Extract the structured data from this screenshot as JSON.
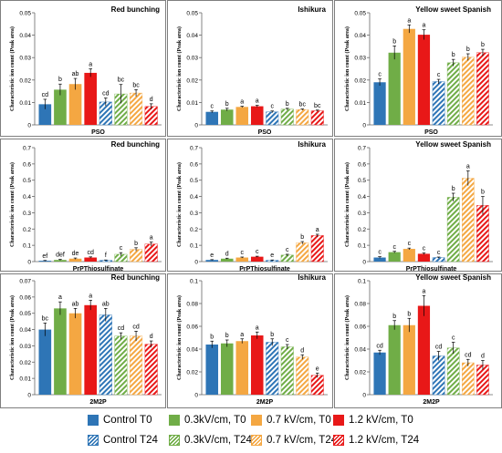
{
  "colors": {
    "control": "#2e75b6",
    "low": "#70ad47",
    "mid": "#f4a742",
    "high": "#e81818"
  },
  "legend": {
    "items": [
      {
        "label": "Control T0",
        "color": "#2e75b6",
        "pattern": "solid"
      },
      {
        "label": "0.3kV/cm, T0",
        "color": "#70ad47",
        "pattern": "solid"
      },
      {
        "label": "0.7 kV/cm, T0",
        "color": "#f4a742",
        "pattern": "solid"
      },
      {
        "label": "1.2 kV/cm, T0",
        "color": "#e81818",
        "pattern": "solid"
      },
      {
        "label": "Control T24",
        "color": "#2e75b6",
        "pattern": "hatch"
      },
      {
        "label": "0.3kV/cm, T24",
        "color": "#70ad47",
        "pattern": "hatch"
      },
      {
        "label": "0.7 kV/cm, T24",
        "color": "#f4a742",
        "pattern": "hatch"
      },
      {
        "label": "1.2 kV/cm, T24",
        "color": "#e81818",
        "pattern": "hatch"
      }
    ]
  },
  "chart_data": [
    {
      "type": "bar",
      "title": "Red bunching",
      "xlabel": "PSO",
      "ylabel": "Characteristic ion count (Peak area)",
      "ylim": [
        0,
        0.05
      ],
      "yticks": [
        "0",
        "0.01",
        "0.02",
        "0.03",
        "0.04",
        "0.05"
      ],
      "grid": false,
      "categories": [
        "Control T0",
        "0.3kV/cm, T0",
        "0.7 kV/cm, T0",
        "1.2 kV/cm, T0",
        "Control T24",
        "0.3kV/cm, T24",
        "0.7 kV/cm, T24",
        "1.2 kV/cm, T24"
      ],
      "values": [
        0.0092,
        0.0157,
        0.0182,
        0.0232,
        0.0102,
        0.0138,
        0.0142,
        0.0082
      ],
      "errors": [
        0.0022,
        0.0025,
        0.0025,
        0.0018,
        0.0018,
        0.0042,
        0.0015,
        0.0012
      ],
      "labels": [
        "cd",
        "b",
        "ab",
        "a",
        "cd",
        "bc",
        "bc",
        "d"
      ]
    },
    {
      "type": "bar",
      "title": "Ishikura",
      "xlabel": "PSO",
      "ylabel": "Characteristic ion count (Peak area)",
      "ylim": [
        0,
        0.05
      ],
      "yticks": [
        "0",
        "0.01",
        "0.02",
        "0.03",
        "0.04",
        "0.05"
      ],
      "grid": false,
      "categories": [
        "Control T0",
        "0.3kV/cm, T0",
        "0.7 kV/cm, T0",
        "1.2 kV/cm, T0",
        "Control T24",
        "0.3kV/cm, T24",
        "0.7 kV/cm, T24",
        "1.2 kV/cm, T24"
      ],
      "values": [
        0.0058,
        0.0068,
        0.008,
        0.0083,
        0.0058,
        0.007,
        0.0068,
        0.0063
      ],
      "errors": [
        0.0004,
        0.0006,
        0.0003,
        0.0004,
        0.0004,
        0.0004,
        0.0003,
        0.0003
      ],
      "labels": [
        "c",
        "b",
        "a",
        "a",
        "c",
        "b",
        "bc",
        "bc"
      ]
    },
    {
      "type": "bar",
      "title": "Yellow sweet Spanish",
      "xlabel": "PSO",
      "ylabel": "Characteristic ion count (Peak area)",
      "ylim": [
        0,
        0.05
      ],
      "yticks": [
        "0",
        "0.01",
        "0.02",
        "0.03",
        "0.04",
        "0.05"
      ],
      "grid": false,
      "categories": [
        "Control T0",
        "0.3kV/cm, T0",
        "0.7 kV/cm, T0",
        "1.2 kV/cm, T0",
        "Control T24",
        "0.3kV/cm, T24",
        "0.7 kV/cm, T24",
        "1.2 kV/cm, T24"
      ],
      "values": [
        0.019,
        0.0322,
        0.0428,
        0.0402,
        0.0193,
        0.0277,
        0.0302,
        0.0322
      ],
      "errors": [
        0.0015,
        0.003,
        0.0018,
        0.0022,
        0.001,
        0.0015,
        0.0015,
        0.0015
      ],
      "labels": [
        "c",
        "b",
        "a",
        "a",
        "c",
        "b",
        "b",
        "b"
      ]
    },
    {
      "type": "bar",
      "title": "Red bunching",
      "xlabel": "PrPThiosulfinate",
      "ylabel": "Characteristic ion count (Peak area)",
      "ylim": [
        0,
        0.7
      ],
      "yticks": [
        "0",
        "0.1",
        "0.2",
        "0.3",
        "0.4",
        "0.5",
        "0.6",
        "0.7"
      ],
      "grid": false,
      "categories": [
        "Control T0",
        "0.3kV/cm, T0",
        "0.7 kV/cm, T0",
        "1.2 kV/cm, T0",
        "Control T24",
        "0.3kV/cm, T24",
        "0.7 kV/cm, T24",
        "1.2 kV/cm, T24"
      ],
      "values": [
        0.005,
        0.01,
        0.018,
        0.025,
        0.008,
        0.045,
        0.075,
        0.108
      ],
      "errors": [
        0.002,
        0.004,
        0.004,
        0.004,
        0.002,
        0.01,
        0.01,
        0.012
      ],
      "labels": [
        "ef",
        "def",
        "de",
        "cd",
        "f",
        "c",
        "b",
        "a"
      ]
    },
    {
      "type": "bar",
      "title": "Ishikura",
      "xlabel": "PrPThiosulfinate",
      "ylabel": "Characteristic ion count (Peak area)",
      "ylim": [
        0,
        0.7
      ],
      "yticks": [
        "0",
        "0.1",
        "0.2",
        "0.3",
        "0.4",
        "0.5",
        "0.6",
        "0.7"
      ],
      "grid": false,
      "categories": [
        "Control T0",
        "0.3kV/cm, T0",
        "0.7 kV/cm, T0",
        "1.2 kV/cm, T0",
        "Control T24",
        "0.3kV/cm, T24",
        "0.7 kV/cm, T24",
        "1.2 kV/cm, T24"
      ],
      "values": [
        0.01,
        0.018,
        0.025,
        0.03,
        0.008,
        0.04,
        0.115,
        0.16
      ],
      "errors": [
        0.002,
        0.003,
        0.003,
        0.003,
        0.002,
        0.005,
        0.008,
        0.008
      ],
      "labels": [
        "e",
        "d",
        "c",
        "c",
        "e",
        "c",
        "b",
        "a"
      ]
    },
    {
      "type": "bar",
      "title": "Yellow sweet Spanish",
      "xlabel": "PrPThiosulfinate",
      "ylabel": "Characteristic ion count (Peak area)",
      "ylim": [
        0,
        0.7
      ],
      "yticks": [
        "0",
        "0.1",
        "0.2",
        "0.3",
        "0.4",
        "0.5",
        "0.6",
        "0.7"
      ],
      "grid": false,
      "categories": [
        "Control T0",
        "0.3kV/cm, T0",
        "0.7 kV/cm, T0",
        "1.2 kV/cm, T0",
        "Control T24",
        "0.3kV/cm, T24",
        "0.7 kV/cm, T24",
        "1.2 kV/cm, T24"
      ],
      "values": [
        0.025,
        0.058,
        0.078,
        0.048,
        0.025,
        0.395,
        0.512,
        0.345
      ],
      "errors": [
        0.005,
        0.005,
        0.005,
        0.005,
        0.003,
        0.025,
        0.045,
        0.055
      ],
      "labels": [
        "c",
        "c",
        "c",
        "c",
        "c",
        "b",
        "a",
        "b"
      ]
    },
    {
      "type": "bar",
      "title": "Red bunching",
      "xlabel": "2M2P",
      "ylabel": "Characteristic ion count (Peak area)",
      "ylim": [
        0,
        0.07
      ],
      "yticks": [
        "0",
        "0.01",
        "0.02",
        "0.03",
        "0.04",
        "0.05",
        "0.06",
        "0.07"
      ],
      "grid": false,
      "categories": [
        "Control T0",
        "0.3kV/cm, T0",
        "0.7 kV/cm, T0",
        "1.2 kV/cm, T0",
        "Control T24",
        "0.3kV/cm, T24",
        "0.7 kV/cm, T24",
        "1.2 kV/cm, T24"
      ],
      "values": [
        0.04,
        0.053,
        0.05,
        0.055,
        0.049,
        0.036,
        0.036,
        0.031
      ],
      "errors": [
        0.004,
        0.004,
        0.003,
        0.003,
        0.004,
        0.002,
        0.003,
        0.002
      ],
      "labels": [
        "bc",
        "a",
        "ab",
        "a",
        "ab",
        "cd",
        "cd",
        "d"
      ]
    },
    {
      "type": "bar",
      "title": "Ishikura",
      "xlabel": "2M2P",
      "ylabel": "Characteristic ion count (Peak area)",
      "ylim": [
        0,
        0.1
      ],
      "yticks": [
        "0",
        "0.02",
        "0.04",
        "0.06",
        "0.08",
        "0.1"
      ],
      "grid": false,
      "categories": [
        "Control T0",
        "0.3kV/cm, T0",
        "0.7 kV/cm, T0",
        "1.2 kV/cm, T0",
        "Control T24",
        "0.3kV/cm, T24",
        "0.7 kV/cm, T24",
        "1.2 kV/cm, T24"
      ],
      "values": [
        0.044,
        0.045,
        0.047,
        0.052,
        0.046,
        0.042,
        0.033,
        0.017
      ],
      "errors": [
        0.003,
        0.003,
        0.002,
        0.003,
        0.003,
        0.002,
        0.002,
        0.002
      ],
      "labels": [
        "b",
        "b",
        "a",
        "a",
        "b",
        "c",
        "d",
        "e"
      ]
    },
    {
      "type": "bar",
      "title": "Yellow sweet Spanish",
      "xlabel": "2M2P",
      "ylabel": "Characteristic ion count (Peak area)",
      "ylim": [
        0,
        0.1
      ],
      "yticks": [
        "0",
        "0.02",
        "0.04",
        "0.06",
        "0.08",
        "0.1"
      ],
      "grid": false,
      "categories": [
        "Control T0",
        "0.3kV/cm, T0",
        "0.7 kV/cm, T0",
        "1.2 kV/cm, T0",
        "Control T24",
        "0.3kV/cm, T24",
        "0.7 kV/cm, T24",
        "1.2 kV/cm, T24"
      ],
      "values": [
        0.037,
        0.061,
        0.061,
        0.078,
        0.034,
        0.041,
        0.028,
        0.026
      ],
      "errors": [
        0.002,
        0.004,
        0.006,
        0.009,
        0.004,
        0.005,
        0.003,
        0.004
      ],
      "labels": [
        "cd",
        "b",
        "b",
        "a",
        "cd",
        "c",
        "cd",
        "d"
      ]
    }
  ]
}
